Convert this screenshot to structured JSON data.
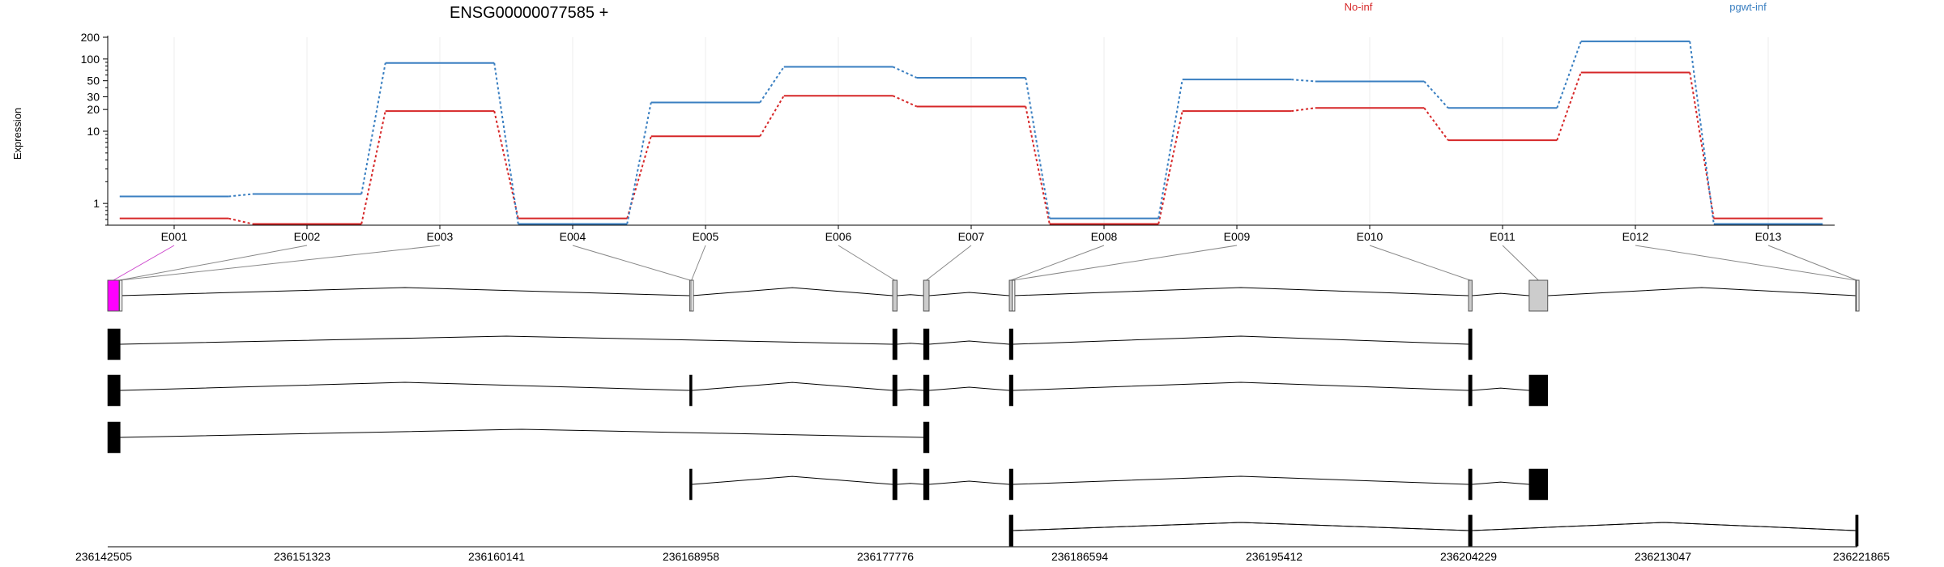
{
  "chart_data": {
    "type": "line",
    "title": "ENSG00000077585 +",
    "ylabel": "Expression",
    "xlabel": "",
    "yscale": "log",
    "ylim": [
      0.5,
      200
    ],
    "yticks": [
      1,
      10,
      20,
      30,
      50,
      100,
      200
    ],
    "grid": true,
    "categories": [
      "E001",
      "E002",
      "E003",
      "E004",
      "E005",
      "E006",
      "E007",
      "E008",
      "E009",
      "E010",
      "E011",
      "E012",
      "E013"
    ],
    "series": [
      {
        "name": "No-inf",
        "color": "#d62728",
        "values": [
          0.62,
          0.52,
          19,
          0.62,
          8.5,
          31,
          22,
          0.52,
          19,
          21,
          7.5,
          65,
          0.62
        ]
      },
      {
        "name": "pgwt-inf",
        "color": "#3a7fc1",
        "values": [
          1.25,
          1.35,
          88,
          0.52,
          25,
          78,
          55,
          0.62,
          52,
          49,
          21,
          175,
          0.52
        ]
      }
    ],
    "genome_axis": {
      "ticks": [
        "236142505",
        "236151323",
        "236160141",
        "236168958",
        "236177776",
        "236186594",
        "236195412",
        "236204229",
        "236213047",
        "236221865"
      ],
      "start": 236142505,
      "end": 236221865
    },
    "exon_bins": [
      {
        "id": "E001",
        "start": 236142505,
        "end": 236143020,
        "color": "#ff00ff"
      },
      {
        "id": "E002",
        "start": 236143020,
        "end": 236143045,
        "color": "#ffffff"
      },
      {
        "id": "E003",
        "start": 236143045,
        "end": 236143070,
        "color": "#ffffff"
      },
      {
        "id": "E004",
        "start": 236168900,
        "end": 236168958,
        "color": "#ffffff"
      },
      {
        "id": "E005",
        "start": 236168958,
        "end": 236169010,
        "color": "#ffffff"
      },
      {
        "id": "E006",
        "start": 236178110,
        "end": 236178310,
        "color": "#cccccc"
      },
      {
        "id": "E007",
        "start": 236179510,
        "end": 236179760,
        "color": "#cccccc"
      },
      {
        "id": "E008",
        "start": 236183400,
        "end": 236183540,
        "color": "#cccccc"
      },
      {
        "id": "E009",
        "start": 236183540,
        "end": 236183570,
        "color": "#ffffff"
      },
      {
        "id": "E010",
        "start": 236204229,
        "end": 236204390,
        "color": "#cccccc"
      },
      {
        "id": "E011",
        "start": 236206980,
        "end": 236207820,
        "color": "#cccccc"
      },
      {
        "id": "E012",
        "start": 236221790,
        "end": 236221830,
        "color": "#ffffff"
      },
      {
        "id": "E013",
        "start": 236221830,
        "end": 236221865,
        "color": "#ffffff"
      }
    ],
    "transcripts": [
      [
        [
          236142505,
          236143070
        ],
        [
          236168900,
          236169010
        ],
        [
          236178110,
          236178310
        ],
        [
          236179510,
          236179760
        ],
        [
          236183400,
          236183570
        ],
        [
          236204229,
          236204390
        ],
        [
          236206980,
          236207820
        ],
        [
          236221790,
          236221865
        ]
      ],
      [
        [
          236142505,
          236143070
        ],
        [
          236178110,
          236178310
        ],
        [
          236179510,
          236179760
        ],
        [
          236183400,
          236183570
        ],
        [
          236204229,
          236204390
        ]
      ],
      [
        [
          236142505,
          236143070
        ],
        [
          236168900,
          236169010
        ],
        [
          236178110,
          236178310
        ],
        [
          236179510,
          236179760
        ],
        [
          236183400,
          236183570
        ],
        [
          236204229,
          236204390
        ],
        [
          236206980,
          236207820
        ]
      ],
      [
        [
          236142505,
          236143070
        ],
        [
          236179510,
          236179760
        ]
      ],
      [
        [
          236168900,
          236169010
        ],
        [
          236178110,
          236178310
        ],
        [
          236179510,
          236179760
        ],
        [
          236183400,
          236183570
        ],
        [
          236204229,
          236204390
        ],
        [
          236206980,
          236207820
        ]
      ],
      [
        [
          236183400,
          236183570
        ],
        [
          236204229,
          236204390
        ],
        [
          236221790,
          236221865
        ]
      ]
    ]
  }
}
